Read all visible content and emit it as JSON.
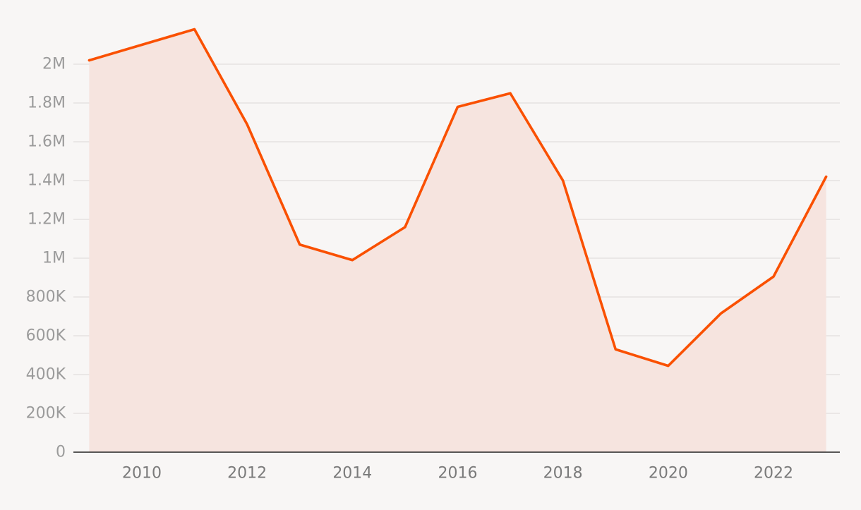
{
  "chart_data": {
    "type": "area",
    "title": "",
    "xlabel": "",
    "ylabel": "",
    "x": [
      2009,
      2010,
      2011,
      2012,
      2013,
      2014,
      2015,
      2016,
      2017,
      2018,
      2019,
      2020,
      2021,
      2022,
      2023
    ],
    "series": [
      {
        "values": [
          2020000,
          2100000,
          2180000,
          1690000,
          1070000,
          990000,
          1160000,
          1780000,
          1850000,
          1400000,
          530000,
          445000,
          715000,
          905000,
          1420000
        ],
        "color": "#fa5000",
        "fill": "#f6e4df"
      }
    ],
    "xlim": [
      2008.7,
      2023.26
    ],
    "ylim": [
      0,
      2200000
    ],
    "x_ticks": [
      2010,
      2012,
      2014,
      2016,
      2018,
      2020,
      2022
    ],
    "x_tick_labels": [
      "2010",
      "2012",
      "2014",
      "2016",
      "2018",
      "2020",
      "2022"
    ],
    "y_ticks": [
      0,
      200000,
      400000,
      600000,
      800000,
      1000000,
      1200000,
      1400000,
      1600000,
      1800000,
      2000000
    ],
    "y_tick_labels": [
      "0",
      "200K",
      "400K",
      "600K",
      "800K",
      "1M",
      "1.2M",
      "1.4M",
      "1.6M",
      "1.8M",
      "2M"
    ],
    "grid": true,
    "legend": "none",
    "colors": {
      "background": "#f8f6f5",
      "grid": "#e2dedd",
      "axis": "#222222",
      "tick_label": "#9b9b9b",
      "x_tick_label": "#7a7a7a"
    }
  }
}
